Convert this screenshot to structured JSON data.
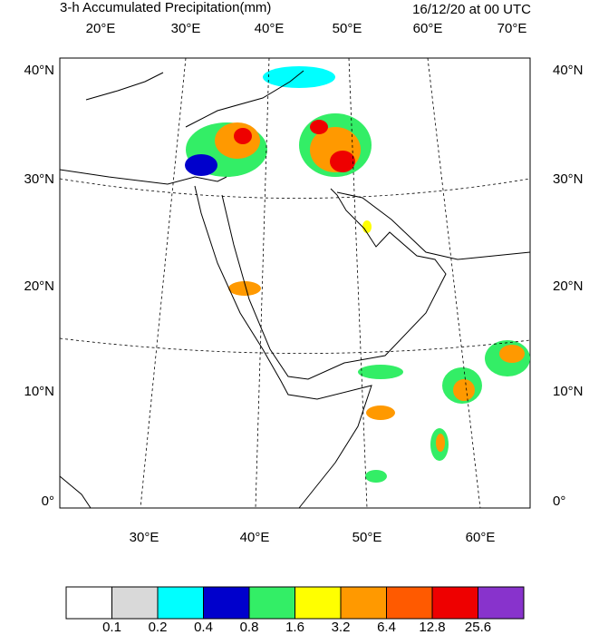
{
  "title": "3-h Accumulated Precipitation(mm)",
  "valid_time": "16/12/20 at 00 UTC",
  "map": {
    "top_lon_labels": [
      "20°E",
      "30°E",
      "40°E",
      "50°E",
      "60°E",
      "70°E"
    ],
    "bottom_lon_labels": [
      "30°E",
      "40°E",
      "50°E",
      "60°E"
    ],
    "lat_labels": [
      "40°N",
      "30°N",
      "20°N",
      "10°N",
      "0°"
    ]
  },
  "colorbar": {
    "colors": [
      "#ffffff",
      "#d9d9d9",
      "#00ffff",
      "#0000cc",
      "#33ee66",
      "#ffff00",
      "#ff9900",
      "#ff5a00",
      "#ee0000",
      "#8833cc"
    ],
    "labels": [
      0.1,
      0.2,
      0.4,
      0.8,
      1.6,
      3.2,
      6.4,
      12.8,
      25.6
    ]
  }
}
